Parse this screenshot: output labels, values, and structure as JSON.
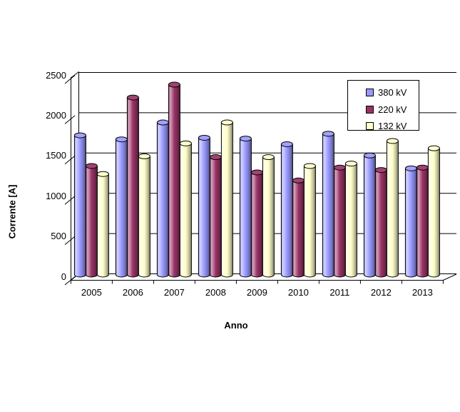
{
  "chart_data": {
    "type": "bar",
    "style": "3d-cylinder",
    "title": "",
    "xlabel": "Anno",
    "ylabel": "Corrente [A]",
    "categories": [
      "2005",
      "2006",
      "2007",
      "2008",
      "2009",
      "2010",
      "2011",
      "2012",
      "2013"
    ],
    "series": [
      {
        "name": "380 kV",
        "color": "#9999FF",
        "values": [
          1790,
          1740,
          1950,
          1760,
          1750,
          1680,
          1810,
          1540,
          1380
        ]
      },
      {
        "name": "220 kV",
        "color": "#993366",
        "values": [
          1410,
          2260,
          2420,
          1520,
          1330,
          1230,
          1390,
          1360,
          1390
        ]
      },
      {
        "name": "132 kV",
        "color": "#FFFFCC",
        "values": [
          1310,
          1530,
          1690,
          1950,
          1520,
          1410,
          1440,
          1720,
          1630
        ]
      }
    ],
    "ylim": [
      0,
      2500
    ],
    "ytick_step": 500,
    "ytick_labels": [
      "0",
      "500",
      "1000",
      "1500",
      "2000",
      "2500"
    ],
    "grid": true,
    "legend_position": "top-right",
    "background": "#FFFFFF",
    "axis_color": "#000000",
    "text_color": "#000000"
  }
}
